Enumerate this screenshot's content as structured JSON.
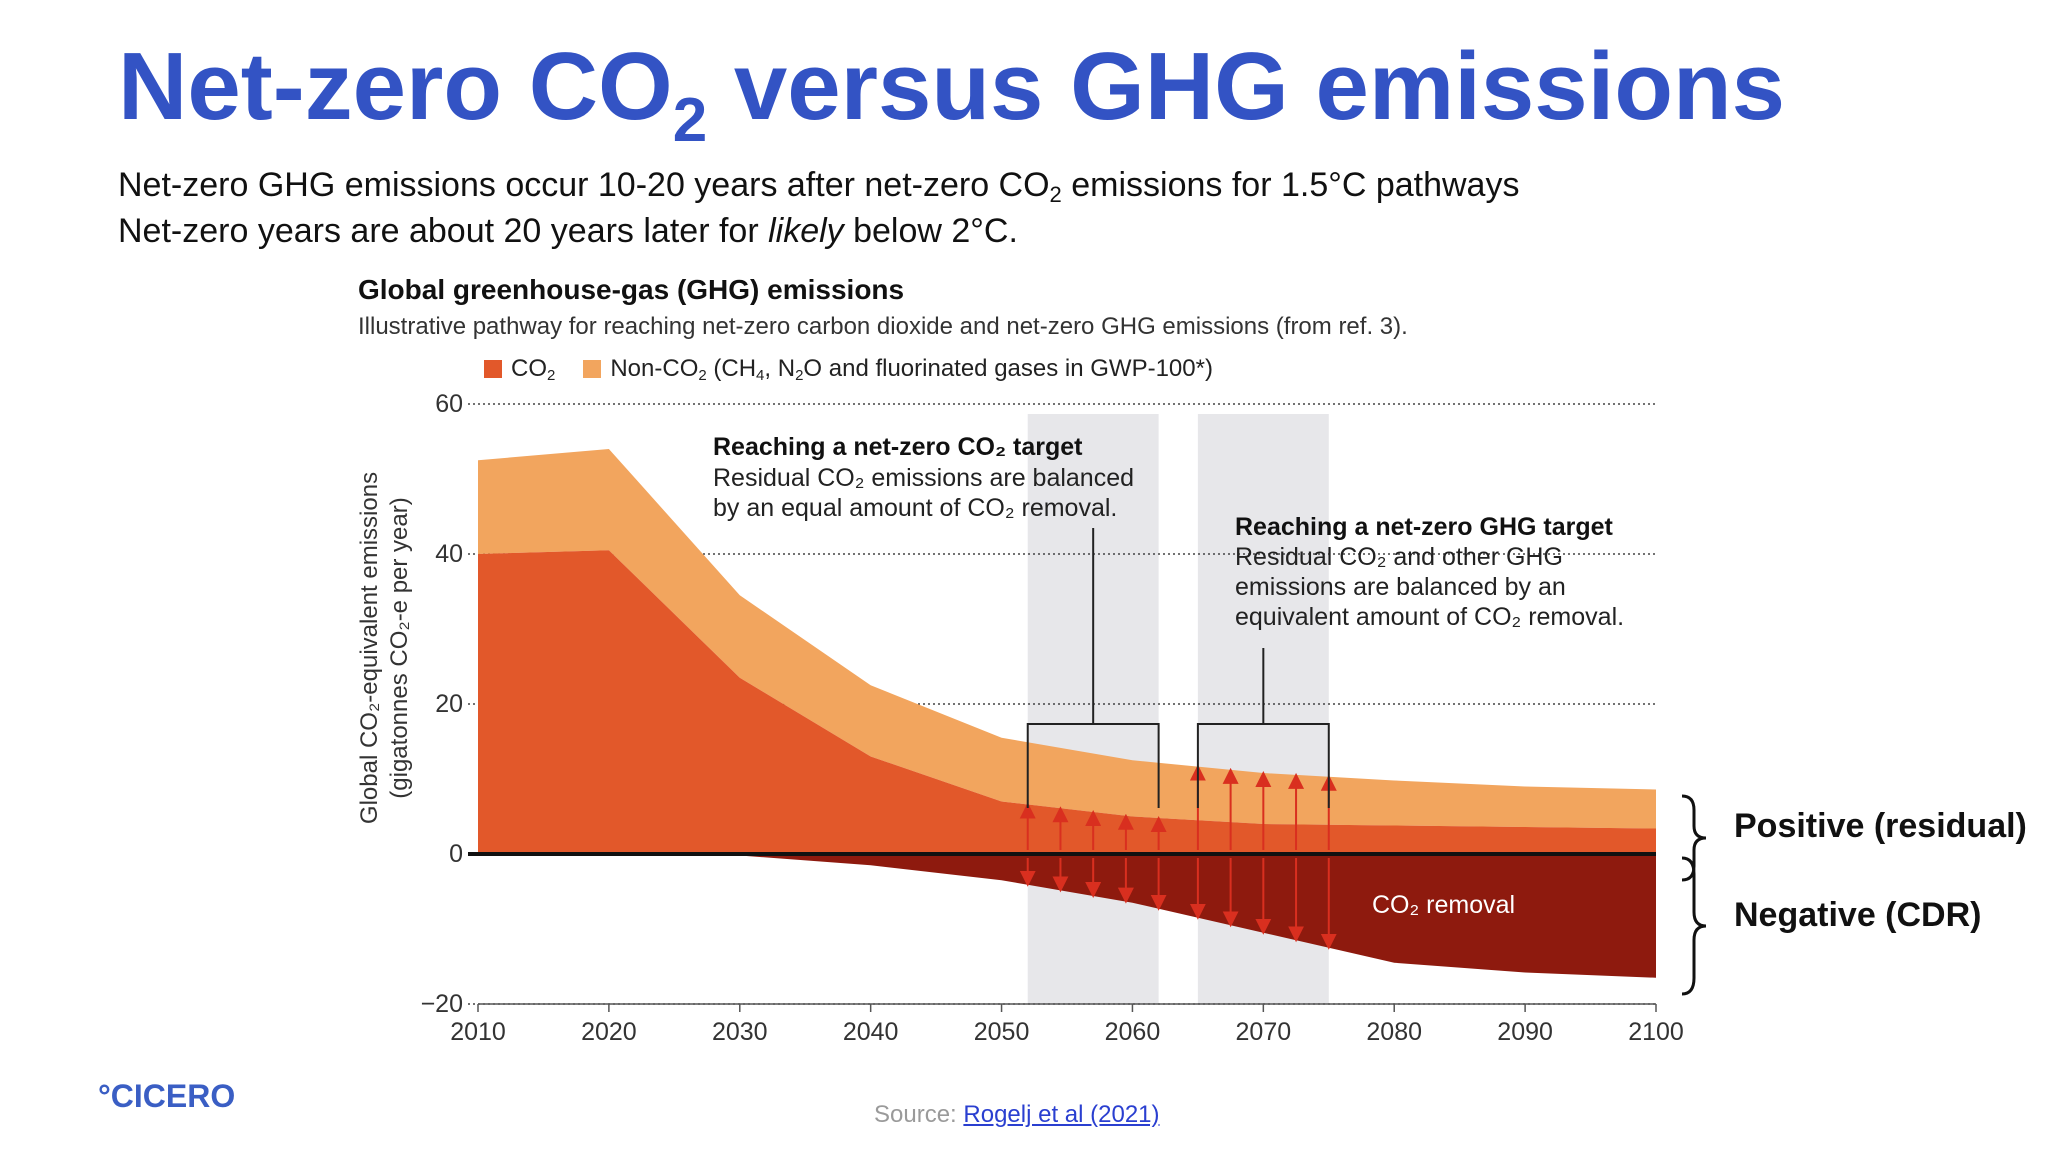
{
  "slide": {
    "title_main": "Net-zero CO",
    "title_sub": "2",
    "title_rest": " versus GHG emissions",
    "line1_a": "Net-zero GHG emissions occur 10-20 years after net-zero CO",
    "line1_sub": "2",
    "line1_b": " emissions for 1.5°C pathways",
    "line2_a": "Net-zero years are about 20 years later for ",
    "line2_em": "likely",
    "line2_b": " below 2°C.",
    "brace_positive": "Positive (residual)",
    "brace_negative": "Negative (CDR)",
    "logo": "°CICERO",
    "source_prefix": "Source: ",
    "source_link": "Rogelj et al (2021)"
  },
  "figure": {
    "title": "Global greenhouse-gas (GHG) emissions",
    "subtitle": "Illustrative pathway for reaching net-zero carbon dioxide and net-zero GHG emissions (from ref. 3).",
    "legend_co2": "CO",
    "legend_co2_sub": "2",
    "legend_nonco2_a": "Non-CO",
    "legend_nonco2_b": " (CH",
    "legend_nonco2_c": ", N",
    "legend_nonco2_d": "O and fluorinated gases in GWP-100*)",
    "ylabel_line1": "Global CO₂-equivalent emissions",
    "ylabel_line2": "(gigatonnes CO₂-e per year)",
    "annotation_co2_title": "Reaching a net-zero CO₂ target",
    "annotation_co2_line1": "Residual CO₂ emissions are balanced",
    "annotation_co2_line2": "by an equal amount of CO₂ removal.",
    "annotation_ghg_title": "Reaching a net-zero GHG target",
    "annotation_ghg_line1": "Residual CO₂ and other GHG",
    "annotation_ghg_line2": "emissions are balanced by an",
    "annotation_ghg_line3": "equivalent amount of CO₂ removal.",
    "removal_label": "CO₂ removal"
  },
  "chart_data": {
    "type": "area",
    "title": "Global greenhouse-gas (GHG) emissions",
    "ylabel": "Global CO₂-equivalent emissions (gigatonnes CO₂-e per year)",
    "xlim": [
      2010,
      2100
    ],
    "ylim": [
      -20,
      60
    ],
    "x_ticks": [
      2010,
      2020,
      2030,
      2040,
      2050,
      2060,
      2070,
      2080,
      2090,
      2100
    ],
    "y_ticks": [
      -20,
      0,
      20,
      40,
      60
    ],
    "y_tick_labels": [
      "−20",
      "0",
      "20",
      "40",
      "60"
    ],
    "gridlines_y": [
      60,
      40,
      20,
      -20
    ],
    "x": [
      2010,
      2020,
      2030,
      2040,
      2050,
      2060,
      2070,
      2080,
      2090,
      2100
    ],
    "series": [
      {
        "name": "CO₂",
        "values": [
          40,
          40.5,
          23.5,
          13,
          7,
          5,
          4,
          3.8,
          3.6,
          3.4
        ],
        "color": "#e2582a"
      },
      {
        "name": "Non-CO₂ (CH₄, N₂O and fluorinated gases in GWP-100*)",
        "values": [
          12.5,
          13.5,
          11,
          9.5,
          8.5,
          7.5,
          6.8,
          6,
          5.4,
          5.2
        ],
        "color": "#f2a55e"
      },
      {
        "name": "CO₂ removal",
        "values": [
          0,
          0,
          -0.2,
          -1.5,
          -3.5,
          -6.5,
          -10.5,
          -14.5,
          -15.8,
          -16.5
        ],
        "color": "#8e1a0e"
      }
    ],
    "highlight_periods": [
      [
        2052,
        2062
      ],
      [
        2065,
        2075
      ]
    ],
    "arrow_years": [
      2052,
      2054.5,
      2057,
      2059.5,
      2062,
      2065,
      2067.5,
      2070,
      2072.5,
      2075
    ],
    "colors": {
      "co2": "#e2582a",
      "non_co2": "#f2a55e",
      "removal": "#8e1a0e",
      "band": "#e7e7ea",
      "title": "#3353c4",
      "arrow": "#d92f1f"
    }
  }
}
